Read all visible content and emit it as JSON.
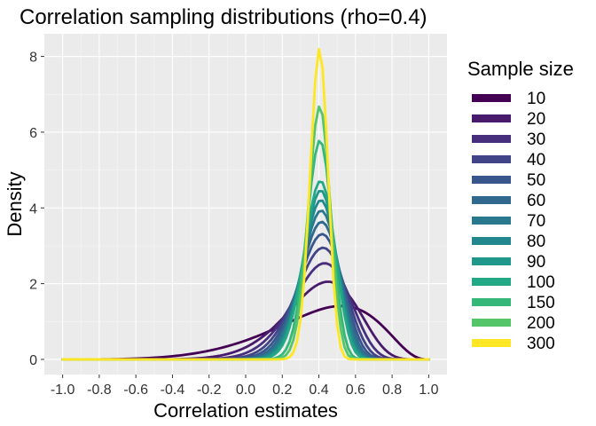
{
  "chart_data": {
    "type": "line",
    "title": "Correlation sampling distributions (rho=0.4)",
    "xlabel": "Correlation estimates",
    "ylabel": "Density",
    "xlim": [
      -1.0,
      1.0
    ],
    "ylim": [
      0,
      8.6
    ],
    "x_ticks": [
      -1.0,
      -0.8,
      -0.6,
      -0.4,
      -0.2,
      0.0,
      0.2,
      0.4,
      0.6,
      0.8,
      1.0
    ],
    "x_tick_labels": [
      "-1.0",
      "-0.8",
      "-0.6",
      "-0.4",
      "-0.2",
      "0.0",
      "0.2",
      "0.4",
      "0.6",
      "0.8",
      "1.0"
    ],
    "y_ticks": [
      0,
      2,
      4,
      6,
      8
    ],
    "y_tick_labels": [
      "0",
      "2",
      "4",
      "6",
      "8"
    ],
    "grid": true,
    "rho": 0.4,
    "legend": {
      "title": "Sample size",
      "position": "right"
    },
    "series": [
      {
        "name": "10",
        "n": 10,
        "color": "#440154"
      },
      {
        "name": "20",
        "n": 20,
        "color": "#481A6C"
      },
      {
        "name": "30",
        "n": 30,
        "color": "#472F7D"
      },
      {
        "name": "40",
        "n": 40,
        "color": "#414487"
      },
      {
        "name": "50",
        "n": 50,
        "color": "#39568C"
      },
      {
        "name": "60",
        "n": 60,
        "color": "#31688E"
      },
      {
        "name": "70",
        "n": 70,
        "color": "#2A788E"
      },
      {
        "name": "80",
        "n": 80,
        "color": "#23888E"
      },
      {
        "name": "90",
        "n": 90,
        "color": "#1F988B"
      },
      {
        "name": "100",
        "n": 100,
        "color": "#22A884"
      },
      {
        "name": "150",
        "n": 150,
        "color": "#35B779"
      },
      {
        "name": "200",
        "n": 200,
        "color": "#54C568"
      },
      {
        "name": "300",
        "n": 300,
        "color": "#FDE725"
      }
    ]
  }
}
